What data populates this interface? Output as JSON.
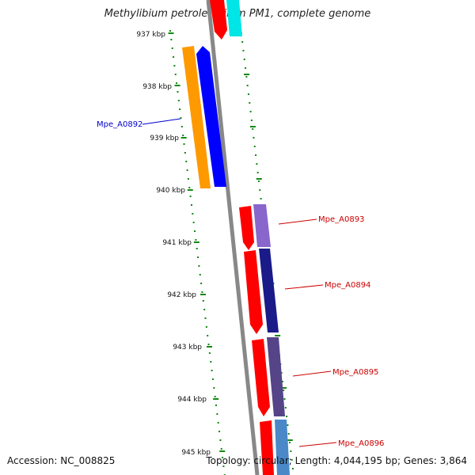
{
  "title": "Methylibium petroleiphilum PM1, complete genome",
  "footer": {
    "accession": "Accession: NC_008825",
    "summary": "Topology: circular; Length: 4,044,195 bp; Genes: 3,864"
  },
  "axis": {
    "ticks": [
      "937 kbp",
      "938 kbp",
      "939 kbp",
      "940 kbp",
      "941 kbp",
      "942 kbp",
      "943 kbp",
      "944 kbp",
      "945 kbp"
    ]
  },
  "genes": [
    {
      "name": "Mpe_A0892",
      "strand": "minus",
      "color": "#0000cc"
    },
    {
      "name": "Mpe_A0893",
      "strand": "plus",
      "color": "#cc0000"
    },
    {
      "name": "Mpe_A0894",
      "strand": "plus",
      "color": "#cc0000"
    },
    {
      "name": "Mpe_A0895",
      "strand": "plus",
      "color": "#cc0000"
    },
    {
      "name": "Mpe_A0896",
      "strand": "plus",
      "color": "#cc0000"
    }
  ],
  "colors": {
    "backbone": "#888888",
    "ticks": "#118811",
    "cds_plus": "#ff0000",
    "cds_minus": "#0000ff",
    "gene_minus": "#ff9900",
    "cyan": "#00e5e5",
    "violet_1": "#8866cc",
    "navy": "#1a1a88",
    "slate": "#554488",
    "steel": "#4a88c8"
  }
}
